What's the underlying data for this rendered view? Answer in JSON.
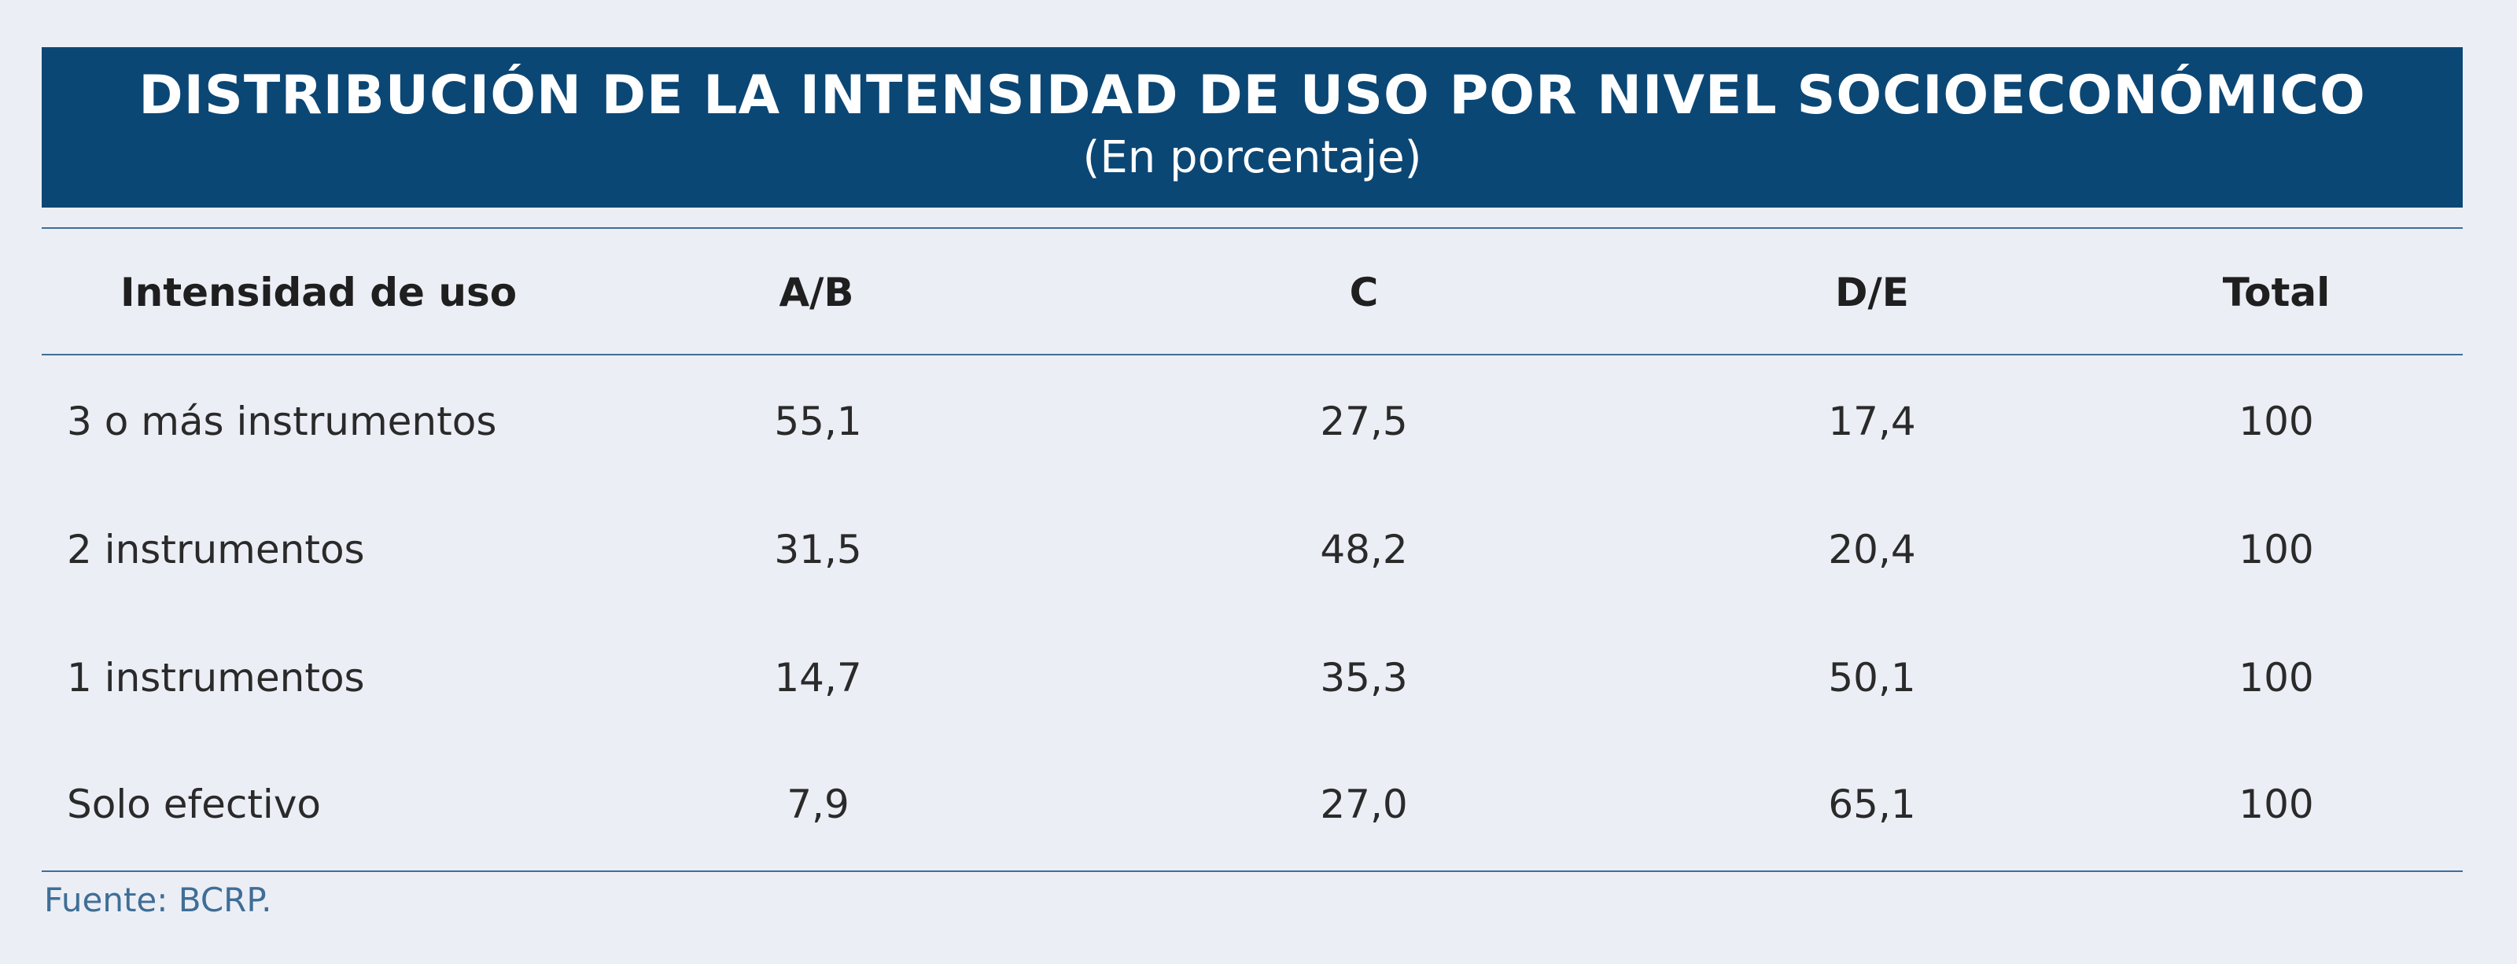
{
  "chart_data": {
    "type": "table",
    "title": "DISTRIBUCIÓN DE LA INTENSIDAD DE USO POR NIVEL SOCIOECONÓMICO",
    "subtitle": "(En porcentaje)",
    "columns": [
      "Intensidad de uso",
      "A/B",
      "C",
      "D/E",
      "Total"
    ],
    "rows": [
      [
        "3 o más instrumentos",
        "55,1",
        "27,5",
        "17,4",
        "100"
      ],
      [
        "2 instrumentos",
        "31,5",
        "48,2",
        "20,4",
        "100"
      ],
      [
        "1 instrumentos",
        "14,7",
        "35,3",
        "50,1",
        "100"
      ],
      [
        "Solo efectivo",
        "7,9",
        "27,0",
        "65,1",
        "100"
      ]
    ],
    "source": "Fuente: BCRP."
  },
  "colors": {
    "banner": "#0b4775",
    "background": "#eceef6",
    "rule": "#3f6e96",
    "source_text": "#3f6e96"
  }
}
